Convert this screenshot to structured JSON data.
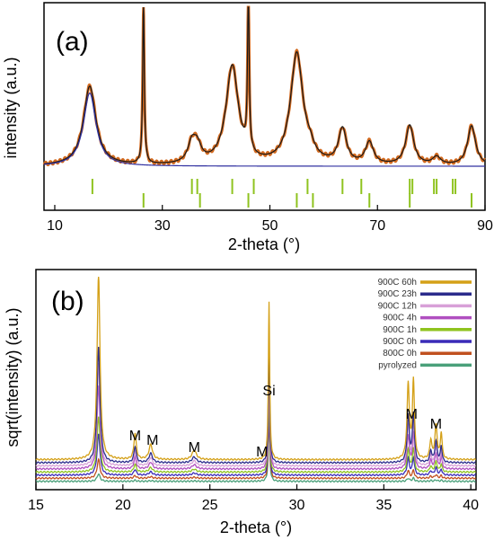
{
  "chart_data": [
    {
      "panel_label": "(a)",
      "type": "line",
      "xlabel": "2-theta (°)",
      "ylabel": "intensity (a.u.)",
      "xlim": [
        8,
        90
      ],
      "x_ticks": [
        10,
        30,
        50,
        70,
        90
      ],
      "y_ticks_shown": false,
      "series": [
        {
          "role": "observed",
          "color": "#d2691e",
          "peaks": [
            [
              16.5,
              0.5
            ],
            [
              26.5,
              1.0
            ],
            [
              35.5,
              0.12
            ],
            [
              36.5,
              0.1
            ],
            [
              43.0,
              0.62
            ],
            [
              46.0,
              1.0
            ],
            [
              55.0,
              0.7
            ],
            [
              57.5,
              0.05
            ],
            [
              63.5,
              0.22
            ],
            [
              68.5,
              0.14
            ],
            [
              76.0,
              0.25
            ],
            [
              81.0,
              0.05
            ],
            [
              87.5,
              0.25
            ]
          ]
        },
        {
          "role": "fit",
          "color": "#1a1a1a",
          "peaks": [
            [
              16.5,
              0.5
            ],
            [
              26.5,
              1.0
            ],
            [
              35.5,
              0.12
            ],
            [
              36.5,
              0.1
            ],
            [
              43.0,
              0.62
            ],
            [
              46.0,
              1.0
            ],
            [
              55.0,
              0.7
            ],
            [
              57.5,
              0.05
            ],
            [
              63.5,
              0.22
            ],
            [
              68.5,
              0.14
            ],
            [
              76.0,
              0.25
            ],
            [
              81.0,
              0.05
            ],
            [
              87.5,
              0.25
            ]
          ]
        },
        {
          "role": "fit-variant",
          "color": "#3030a0",
          "peaks": [
            [
              16.5,
              0.46
            ]
          ]
        }
      ],
      "reflection_ticks_row1": [
        17,
        35.5,
        36.5,
        43.0,
        47.0,
        57.0,
        63.5,
        67.0,
        76.0,
        76.5,
        80.5,
        81.0,
        84.0,
        84.5
      ],
      "reflection_ticks_row2": [
        26.5,
        37.0,
        46.0,
        55.0,
        58.0,
        68.5,
        76.0,
        87.5
      ],
      "tick_color": "#8fc31f"
    },
    {
      "panel_label": "(b)",
      "type": "line",
      "xlabel": "2-theta (°)",
      "ylabel": "sqrt(intensity) (a.u.)",
      "xlim": [
        15,
        40.3
      ],
      "x_ticks": [
        15,
        20,
        25,
        30,
        35,
        40
      ],
      "y_ticks_shown": false,
      "legend_position": "top-right",
      "series": [
        {
          "name": "900C 60h",
          "color": "#d4a017",
          "offset": 0.115,
          "scale": 1.0
        },
        {
          "name": "900C 23h",
          "color": "#2b2b8c",
          "offset": 0.1,
          "scale": 0.62
        },
        {
          "name": "900C 12h",
          "color": "#d8a0d8",
          "offset": 0.085,
          "scale": 0.55
        },
        {
          "name": "900C 4h",
          "color": "#b04fc0",
          "offset": 0.07,
          "scale": 0.45
        },
        {
          "name": "900C 1h",
          "color": "#8fc31f",
          "offset": 0.055,
          "scale": 0.3
        },
        {
          "name": "900C 0h",
          "color": "#3a2cb8",
          "offset": 0.04,
          "scale": 0.22
        },
        {
          "name": "800C 0h",
          "color": "#c0501f",
          "offset": 0.025,
          "scale": 0.1
        },
        {
          "name": "pyrolyzed",
          "color": "#4aa07a",
          "offset": 0.01,
          "scale": 0.04
        }
      ],
      "peaks": [
        [
          18.6,
          1.0,
          0.1
        ],
        [
          20.7,
          0.14,
          0.08
        ],
        [
          21.6,
          0.08,
          0.12
        ],
        [
          24.1,
          0.05,
          0.15
        ],
        [
          28.4,
          0.45,
          0.05
        ],
        [
          36.4,
          0.4,
          0.08
        ],
        [
          36.7,
          0.42,
          0.07
        ],
        [
          37.7,
          0.1,
          0.07
        ],
        [
          38.0,
          0.18,
          0.08
        ],
        [
          38.3,
          0.14,
          0.06
        ]
      ],
      "si_peak": [
        28.4,
        0.36,
        0.04
      ],
      "annotations": [
        {
          "text": "M",
          "x": 20.7
        },
        {
          "text": "M",
          "x": 21.7
        },
        {
          "text": "M",
          "x": 24.1
        },
        {
          "text": "M",
          "x": 28.0
        },
        {
          "text": "Si",
          "x": 28.4
        },
        {
          "text": "M",
          "x": 36.6
        },
        {
          "text": "M",
          "x": 38.0
        }
      ]
    }
  ]
}
